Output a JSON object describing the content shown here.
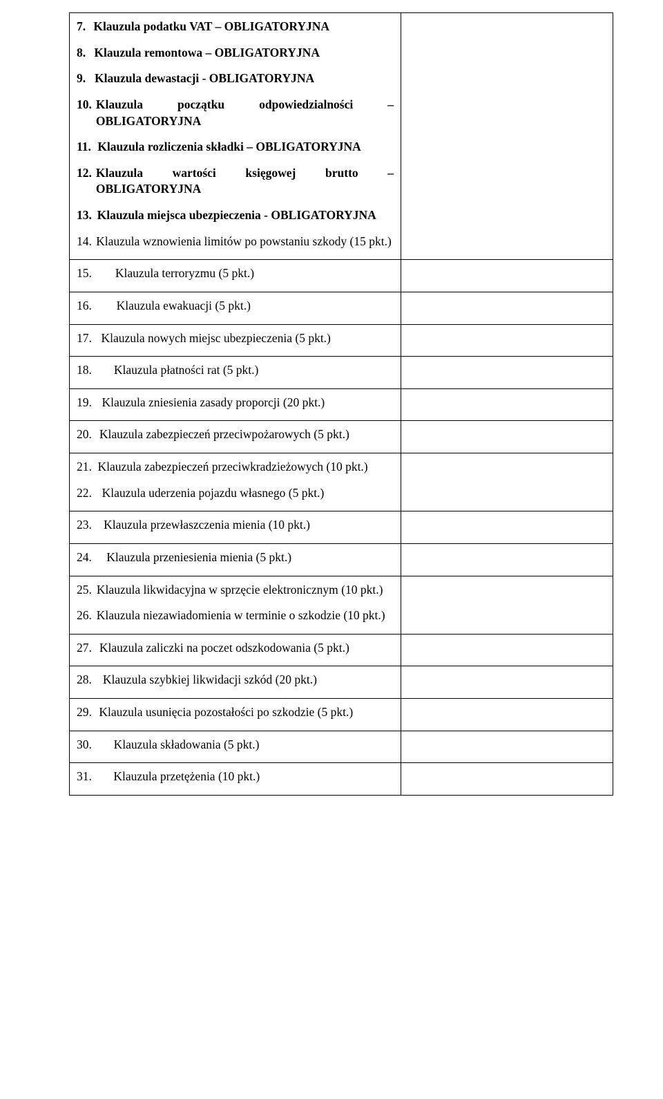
{
  "table": {
    "border_color": "#000000",
    "background_color": "#ffffff",
    "text_color": "#000000",
    "font_family": "Times New Roman",
    "font_size_pt": 13,
    "rows": [
      {
        "num": "7.",
        "text": "Klauzula podatku VAT – OBLIGATORYJNA",
        "bold": true,
        "justify": false
      },
      {
        "num": "8.",
        "text": "Klauzula remontowa – OBLIGATORYJNA",
        "bold": true,
        "justify": false
      },
      {
        "num": "9.",
        "text": "Klauzula dewastacji - OBLIGATORYJNA",
        "bold": true,
        "justify": false
      },
      {
        "num": "10.",
        "text": "Klauzula początku odpowiedzialności – OBLIGATORYJNA",
        "bold": true,
        "justify": true
      },
      {
        "num": "11.",
        "text": "Klauzula rozliczenia składki – OBLIGATORYJNA",
        "bold": true,
        "justify": true
      },
      {
        "num": "12.",
        "text": "Klauzula wartości księgowej brutto – OBLIGATORYJNA",
        "bold": true,
        "justify": true
      },
      {
        "num": "13.",
        "text": "Klauzula miejsca ubezpieczenia - OBLIGATORYJNA",
        "bold": true,
        "justify": true
      },
      {
        "num": "14.",
        "text": "Klauzula wznowienia limitów po powstaniu szkody (15 pkt.)",
        "bold": false,
        "justify": true
      },
      {
        "num": "15.",
        "text": "Klauzula terroryzmu (5 pkt.)",
        "bold": false,
        "justify": false
      },
      {
        "num": "16.",
        "text": "Klauzula ewakuacji (5 pkt.)",
        "bold": false,
        "justify": false
      },
      {
        "num": "17.",
        "text": "Klauzula nowych miejsc ubezpieczenia (5 pkt.)",
        "bold": false,
        "justify": false
      },
      {
        "num": "18.",
        "text": "Klauzula płatności rat (5 pkt.)",
        "bold": false,
        "justify": false
      },
      {
        "num": "19.",
        "text": "Klauzula zniesienia zasady proporcji (20 pkt.)",
        "bold": false,
        "justify": false
      },
      {
        "num": "20.",
        "text": "Klauzula zabezpieczeń przeciwpożarowych (5 pkt.)",
        "bold": false,
        "justify": false
      },
      {
        "num": "21.",
        "text": "Klauzula zabezpieczeń przeciwkradzieżowych (10 pkt.)",
        "bold": false,
        "justify": false
      },
      {
        "num": "22.",
        "text": "Klauzula uderzenia pojazdu własnego (5 pkt.)",
        "bold": false,
        "justify": false
      },
      {
        "num": "23.",
        "text": "Klauzula przewłaszczenia mienia (10 pkt.)",
        "bold": false,
        "justify": false
      },
      {
        "num": "24.",
        "text": "Klauzula przeniesienia mienia (5 pkt.)",
        "bold": false,
        "justify": false
      },
      {
        "num": "25.",
        "text": "Klauzula likwidacyjna w sprzęcie elektronicznym (10 pkt.)",
        "bold": false,
        "justify": false
      },
      {
        "num": "26.",
        "text": "Klauzula niezawiadomienia w terminie o szkodzie (10 pkt.)",
        "bold": false,
        "justify": false
      },
      {
        "num": "27.",
        "text": "Klauzula zaliczki na poczet odszkodowania (5 pkt.)",
        "bold": false,
        "justify": false
      },
      {
        "num": "28.",
        "text": "Klauzula szybkiej likwidacji szkód (20 pkt.)",
        "bold": false,
        "justify": false
      },
      {
        "num": "29.",
        "text": "Klauzula usunięcia pozostałości po szkodzie (5 pkt.)",
        "bold": false,
        "justify": false
      },
      {
        "num": "30.",
        "text": "Klauzula składowania (5 pkt.)",
        "bold": false,
        "justify": false
      },
      {
        "num": "31.",
        "text": "Klauzula przetężenia (10 pkt.)",
        "bold": false,
        "justify": false
      }
    ],
    "groups": [
      [
        0,
        1,
        2,
        3,
        4,
        5,
        6,
        7
      ],
      [
        8
      ],
      [
        9
      ],
      [
        10
      ],
      [
        11
      ],
      [
        12
      ],
      [
        13
      ],
      [
        14,
        15
      ],
      [
        16
      ],
      [
        17
      ],
      [
        18,
        19
      ],
      [
        20
      ],
      [
        21
      ],
      [
        22
      ],
      [
        23
      ],
      [
        24
      ]
    ]
  }
}
